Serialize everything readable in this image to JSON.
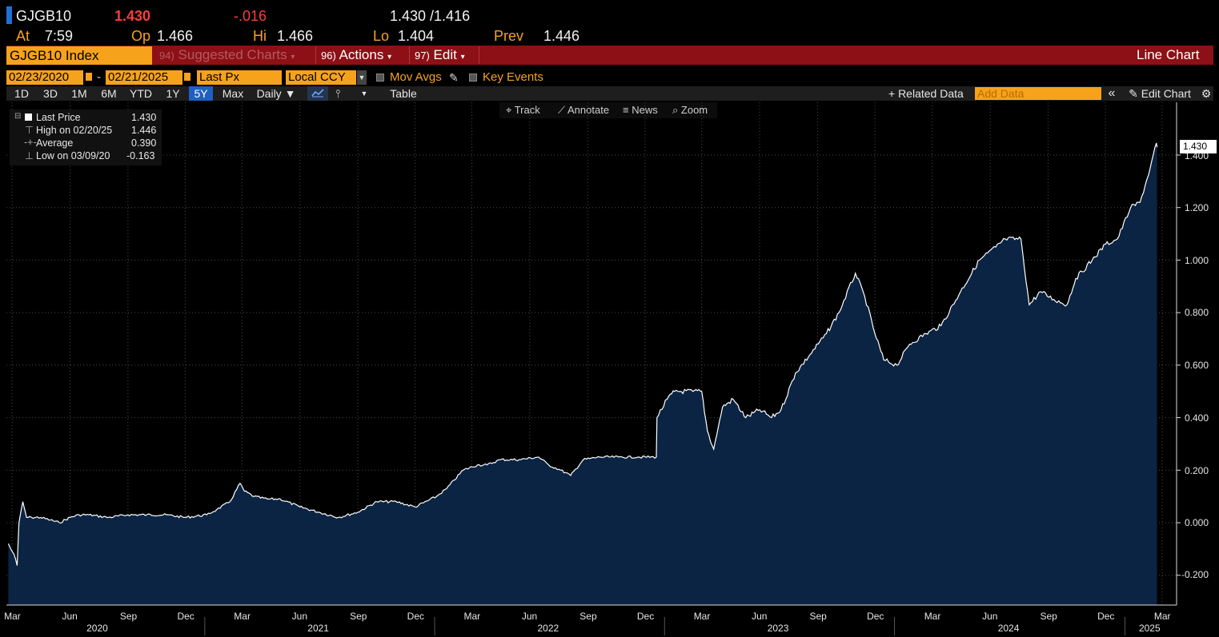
{
  "quote": {
    "ticker": "GJGB10",
    "last": "1.430",
    "change": "-.016",
    "bid_ask": "1.430 /1.416",
    "at_label": "At",
    "at_time": "7:59",
    "op_label": "Op",
    "op_value": "1.466",
    "hi_label": "Hi",
    "hi_value": "1.466",
    "lo_label": "Lo",
    "lo_value": "1.404",
    "prev_label": "Prev",
    "prev_value": "1.446"
  },
  "menubar": {
    "security": "GJGB10 Index",
    "suggested_num": "94)",
    "suggested_label": "Suggested Charts",
    "actions_num": "96)",
    "actions_label": "Actions",
    "edit_num": "97)",
    "edit_label": "Edit",
    "chart_type": "Line Chart"
  },
  "controls": {
    "start_date": "02/23/2020",
    "dash": "-",
    "end_date": "02/21/2025",
    "field": "Last Px",
    "currency": "Local CCY",
    "mov_avgs": "Mov Avgs",
    "key_events": "Key Events"
  },
  "toolbar": {
    "periods": [
      "1D",
      "3D",
      "1M",
      "6M",
      "YTD",
      "1Y",
      "5Y",
      "Max"
    ],
    "selected_period": "5Y",
    "frequency": "Daily ▼",
    "table": "Table",
    "related_data": "+ Related Data",
    "add_data_placeholder": "Add Data",
    "collapse": "«",
    "edit_chart": "Edit Chart"
  },
  "chart_tools": {
    "track": "Track",
    "annotate": "Annotate",
    "news": "News",
    "zoom": "Zoom"
  },
  "legend": {
    "rows": [
      {
        "label": "Last Price",
        "value": "1.430"
      },
      {
        "label": "High on 02/20/25",
        "value": "1.446"
      },
      {
        "label": "Average",
        "value": "0.390"
      },
      {
        "label": "Low on 03/09/20",
        "value": "-0.163"
      }
    ]
  },
  "colors": {
    "accent_orange": "#f7a21b",
    "menubar_red": "#8c1016",
    "area_fill": "#0b2444",
    "line": "#ffffff",
    "negative_red": "#ff3b3b"
  },
  "chart_data": {
    "type": "area",
    "series": [
      {
        "name": "Last Price",
        "points": [
          [
            "2020-02-24",
            -0.08
          ],
          [
            "2020-02-28",
            -0.1
          ],
          [
            "2020-03-04",
            -0.12
          ],
          [
            "2020-03-09",
            -0.163
          ],
          [
            "2020-03-12",
            0.0
          ],
          [
            "2020-03-18",
            0.08
          ],
          [
            "2020-03-24",
            0.02
          ],
          [
            "2020-04-01",
            0.02
          ],
          [
            "2020-04-15",
            0.02
          ],
          [
            "2020-05-01",
            0.01
          ],
          [
            "2020-05-15",
            0.0
          ],
          [
            "2020-06-01",
            0.02
          ],
          [
            "2020-06-15",
            0.03
          ],
          [
            "2020-07-01",
            0.03
          ],
          [
            "2020-08-01",
            0.02
          ],
          [
            "2020-09-01",
            0.03
          ],
          [
            "2020-10-01",
            0.03
          ],
          [
            "2020-11-01",
            0.03
          ],
          [
            "2020-12-01",
            0.02
          ],
          [
            "2021-01-04",
            0.03
          ],
          [
            "2021-01-20",
            0.05
          ],
          [
            "2021-02-10",
            0.08
          ],
          [
            "2021-02-26",
            0.15
          ],
          [
            "2021-03-05",
            0.12
          ],
          [
            "2021-03-20",
            0.1
          ],
          [
            "2021-04-10",
            0.09
          ],
          [
            "2021-05-01",
            0.09
          ],
          [
            "2021-06-01",
            0.06
          ],
          [
            "2021-07-01",
            0.04
          ],
          [
            "2021-08-01",
            0.02
          ],
          [
            "2021-09-01",
            0.04
          ],
          [
            "2021-10-01",
            0.08
          ],
          [
            "2021-11-01",
            0.08
          ],
          [
            "2021-12-01",
            0.06
          ],
          [
            "2022-01-04",
            0.1
          ],
          [
            "2022-01-20",
            0.13
          ],
          [
            "2022-02-15",
            0.2
          ],
          [
            "2022-03-10",
            0.22
          ],
          [
            "2022-03-25",
            0.22
          ],
          [
            "2022-04-15",
            0.24
          ],
          [
            "2022-05-15",
            0.24
          ],
          [
            "2022-06-15",
            0.25
          ],
          [
            "2022-07-01",
            0.22
          ],
          [
            "2022-07-20",
            0.2
          ],
          [
            "2022-08-05",
            0.18
          ],
          [
            "2022-08-25",
            0.24
          ],
          [
            "2022-09-20",
            0.25
          ],
          [
            "2022-10-20",
            0.25
          ],
          [
            "2022-11-20",
            0.25
          ],
          [
            "2022-12-19",
            0.25
          ],
          [
            "2022-12-20",
            0.4
          ],
          [
            "2023-01-05",
            0.47
          ],
          [
            "2023-01-17",
            0.5
          ],
          [
            "2023-02-15",
            0.5
          ],
          [
            "2023-03-01",
            0.5
          ],
          [
            "2023-03-10",
            0.35
          ],
          [
            "2023-03-20",
            0.28
          ],
          [
            "2023-04-03",
            0.44
          ],
          [
            "2023-04-20",
            0.47
          ],
          [
            "2023-05-10",
            0.4
          ],
          [
            "2023-06-01",
            0.43
          ],
          [
            "2023-06-20",
            0.4
          ],
          [
            "2023-07-05",
            0.43
          ],
          [
            "2023-07-28",
            0.57
          ],
          [
            "2023-08-20",
            0.64
          ],
          [
            "2023-09-15",
            0.72
          ],
          [
            "2023-10-05",
            0.8
          ],
          [
            "2023-10-31",
            0.95
          ],
          [
            "2023-11-15",
            0.86
          ],
          [
            "2023-12-01",
            0.72
          ],
          [
            "2023-12-15",
            0.62
          ],
          [
            "2024-01-05",
            0.6
          ],
          [
            "2024-01-25",
            0.68
          ],
          [
            "2024-02-20",
            0.72
          ],
          [
            "2024-03-15",
            0.75
          ],
          [
            "2024-04-15",
            0.88
          ],
          [
            "2024-05-15",
            1.0
          ],
          [
            "2024-06-10",
            1.05
          ],
          [
            "2024-06-25",
            1.08
          ],
          [
            "2024-07-20",
            1.08
          ],
          [
            "2024-08-02",
            0.83
          ],
          [
            "2024-08-20",
            0.88
          ],
          [
            "2024-09-10",
            0.85
          ],
          [
            "2024-10-01",
            0.83
          ],
          [
            "2024-10-15",
            0.93
          ],
          [
            "2024-11-10",
            1.0
          ],
          [
            "2024-12-01",
            1.06
          ],
          [
            "2024-12-20",
            1.08
          ],
          [
            "2025-01-10",
            1.2
          ],
          [
            "2025-01-25",
            1.22
          ],
          [
            "2025-02-10",
            1.35
          ],
          [
            "2025-02-20",
            1.446
          ],
          [
            "2025-02-21",
            1.43
          ]
        ]
      }
    ],
    "y_range": [
      -0.3,
      1.55
    ],
    "y_ticks": [
      "1.400",
      "1.200",
      "1.000",
      "0.800",
      "0.600",
      "0.400",
      "0.200",
      "0.000",
      "-0.200"
    ],
    "x_range": [
      "2020-02-21",
      "2025-03-24"
    ],
    "month_ticks": [
      "Mar",
      "Jun",
      "Sep",
      "Dec",
      "Mar",
      "Jun",
      "Sep",
      "Dec",
      "Mar",
      "Jun",
      "Sep",
      "Dec",
      "Mar",
      "Jun",
      "Sep",
      "Dec",
      "Mar",
      "Jun",
      "Sep",
      "Dec",
      "Mar"
    ],
    "month_tick_dates": [
      "2020-03-01",
      "2020-06-01",
      "2020-09-01",
      "2020-12-01",
      "2021-03-01",
      "2021-06-01",
      "2021-09-01",
      "2021-12-01",
      "2022-03-01",
      "2022-06-01",
      "2022-09-01",
      "2022-12-01",
      "2023-03-01",
      "2023-06-01",
      "2023-09-01",
      "2023-12-01",
      "2024-03-01",
      "2024-06-01",
      "2024-09-01",
      "2024-12-01",
      "2025-03-01"
    ],
    "year_labels": [
      "2020",
      "2021",
      "2022",
      "2023",
      "2024",
      "2025"
    ],
    "last_price_tag": "1.430",
    "grid": true
  }
}
